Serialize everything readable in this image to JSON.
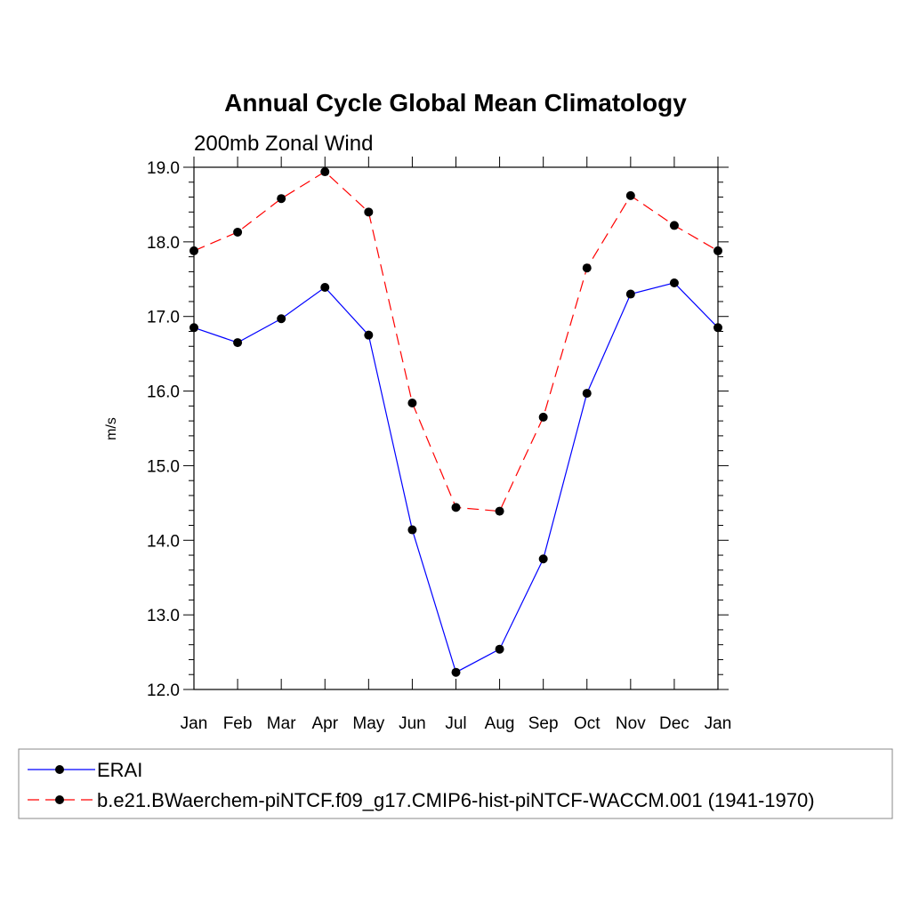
{
  "chart_data": {
    "type": "line",
    "title": "Annual Cycle Global Mean Climatology",
    "subtitle": "200mb Zonal Wind",
    "xlabel": "",
    "ylabel": "m/s",
    "categories": [
      "Jan",
      "Feb",
      "Mar",
      "Apr",
      "May",
      "Jun",
      "Jul",
      "Aug",
      "Sep",
      "Oct",
      "Nov",
      "Dec",
      "Jan"
    ],
    "ylim": [
      12.0,
      19.0
    ],
    "yticks": [
      "12.0",
      "13.0",
      "14.0",
      "15.0",
      "16.0",
      "17.0",
      "18.0",
      "19.0"
    ],
    "grid": false,
    "legend_position": "bottom",
    "series": [
      {
        "name": "ERAI",
        "color": "#0000ff",
        "dash": "solid",
        "values": [
          16.85,
          16.65,
          16.97,
          17.39,
          16.75,
          14.14,
          12.23,
          12.54,
          13.75,
          15.97,
          17.3,
          17.45,
          16.85
        ]
      },
      {
        "name": "b.e21.BWaerchem-piNTCF.f09_g17.CMIP6-hist-piNTCF-WACCM.001 (1941-1970)",
        "color": "#ff0000",
        "dash": "dashed",
        "values": [
          17.88,
          18.13,
          18.58,
          18.94,
          18.4,
          15.84,
          14.44,
          14.39,
          15.65,
          17.65,
          18.62,
          18.22,
          17.88
        ]
      }
    ]
  }
}
